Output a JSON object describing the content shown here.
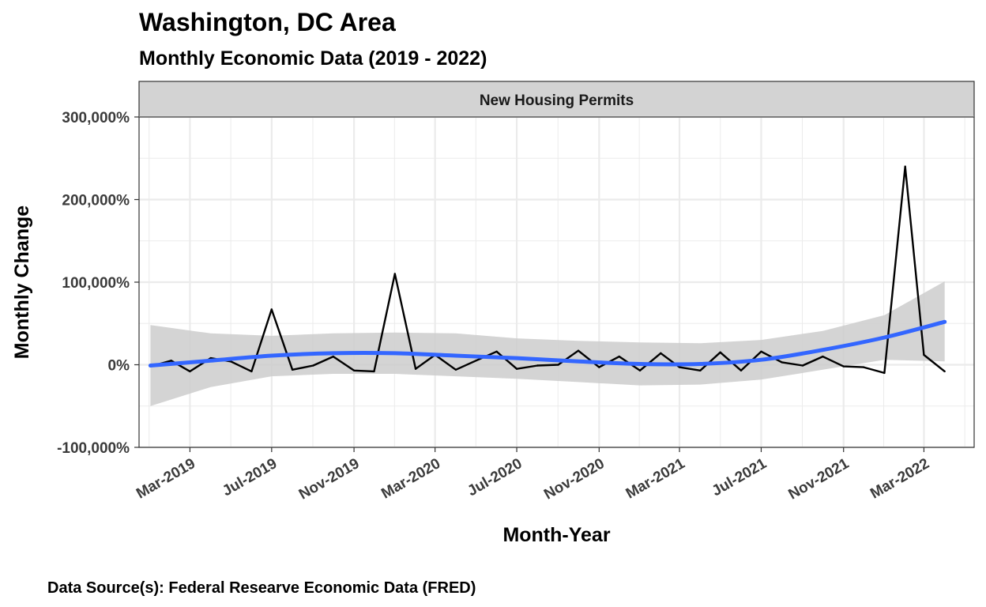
{
  "header": {
    "title": "Washington, DC Area",
    "subtitle": "Monthly Economic Data (2019 - 2022)"
  },
  "caption": "Data Source(s): Federal Researve Economic Data (FRED)",
  "colors": {
    "line": "#000000",
    "smooth": "#3366FF",
    "ribbon": "#cccccc",
    "strip": "#d3d3d3",
    "grid": "#ebebeb"
  },
  "chart_data": {
    "type": "line",
    "facet": "New Housing Permits",
    "xlabel": "Month-Year",
    "ylabel": "Monthly Change",
    "grid": true,
    "x_range": [
      "2018-12-15",
      "2022-05-15"
    ],
    "ylim": [
      -100000,
      300000
    ],
    "y_ticks": [
      {
        "value": -100000,
        "label": "-100,000%"
      },
      {
        "value": 0,
        "label": "0%"
      },
      {
        "value": 100000,
        "label": "100,000%"
      },
      {
        "value": 200000,
        "label": "200,000%"
      },
      {
        "value": 300000,
        "label": "300,000%"
      }
    ],
    "x_ticks": [
      {
        "date": "2019-03-01",
        "label": "Mar-2019"
      },
      {
        "date": "2019-07-01",
        "label": "Jul-2019"
      },
      {
        "date": "2019-11-01",
        "label": "Nov-2019"
      },
      {
        "date": "2020-03-01",
        "label": "Mar-2020"
      },
      {
        "date": "2020-07-01",
        "label": "Jul-2020"
      },
      {
        "date": "2020-11-01",
        "label": "Nov-2020"
      },
      {
        "date": "2021-03-01",
        "label": "Mar-2021"
      },
      {
        "date": "2021-07-01",
        "label": "Jul-2021"
      },
      {
        "date": "2021-11-01",
        "label": "Nov-2021"
      },
      {
        "date": "2022-03-01",
        "label": "Mar-2022"
      }
    ],
    "series": [
      {
        "values": [
          {
            "x": "2019-01-01",
            "y": -2000
          },
          {
            "x": "2019-02-01",
            "y": 5000
          },
          {
            "x": "2019-03-01",
            "y": -8000
          },
          {
            "x": "2019-04-01",
            "y": 8000
          },
          {
            "x": "2019-05-01",
            "y": 4000
          },
          {
            "x": "2019-06-01",
            "y": -8000
          },
          {
            "x": "2019-07-01",
            "y": 67000
          },
          {
            "x": "2019-08-01",
            "y": -6000
          },
          {
            "x": "2019-09-01",
            "y": -1000
          },
          {
            "x": "2019-10-01",
            "y": 10000
          },
          {
            "x": "2019-11-01",
            "y": -7000
          },
          {
            "x": "2019-12-01",
            "y": -8000
          },
          {
            "x": "2020-01-01",
            "y": 110000
          },
          {
            "x": "2020-02-01",
            "y": -5000
          },
          {
            "x": "2020-03-01",
            "y": 12000
          },
          {
            "x": "2020-04-01",
            "y": -6000
          },
          {
            "x": "2020-05-01",
            "y": 5000
          },
          {
            "x": "2020-06-01",
            "y": 16000
          },
          {
            "x": "2020-07-01",
            "y": -5000
          },
          {
            "x": "2020-08-01",
            "y": -1000
          },
          {
            "x": "2020-09-01",
            "y": 0
          },
          {
            "x": "2020-10-01",
            "y": 17000
          },
          {
            "x": "2020-11-01",
            "y": -3000
          },
          {
            "x": "2020-12-01",
            "y": 10000
          },
          {
            "x": "2021-01-01",
            "y": -7000
          },
          {
            "x": "2021-02-01",
            "y": 14000
          },
          {
            "x": "2021-03-01",
            "y": -3000
          },
          {
            "x": "2021-04-01",
            "y": -7000
          },
          {
            "x": "2021-05-01",
            "y": 15000
          },
          {
            "x": "2021-06-01",
            "y": -7000
          },
          {
            "x": "2021-07-01",
            "y": 16000
          },
          {
            "x": "2021-08-01",
            "y": 3000
          },
          {
            "x": "2021-09-01",
            "y": -1000
          },
          {
            "x": "2021-10-01",
            "y": 10000
          },
          {
            "x": "2021-11-01",
            "y": -2000
          },
          {
            "x": "2021-12-01",
            "y": -3000
          },
          {
            "x": "2022-01-01",
            "y": -10000
          },
          {
            "x": "2022-02-01",
            "y": 240000
          },
          {
            "x": "2022-03-01",
            "y": 12000
          },
          {
            "x": "2022-04-01",
            "y": -8000
          }
        ]
      }
    ],
    "smooth": {
      "values": [
        {
          "x": "2019-01-01",
          "y": -1000,
          "lower": -50000,
          "upper": 48000
        },
        {
          "x": "2019-04-01",
          "y": 5000,
          "lower": -27000,
          "upper": 38000
        },
        {
          "x": "2019-07-01",
          "y": 11000,
          "lower": -14000,
          "upper": 35000
        },
        {
          "x": "2019-10-01",
          "y": 14000,
          "lower": -11000,
          "upper": 38000
        },
        {
          "x": "2020-01-01",
          "y": 14000,
          "lower": -11000,
          "upper": 39000
        },
        {
          "x": "2020-04-01",
          "y": 11000,
          "lower": -14000,
          "upper": 38000
        },
        {
          "x": "2020-07-01",
          "y": 8000,
          "lower": -17000,
          "upper": 32000
        },
        {
          "x": "2020-10-01",
          "y": 4000,
          "lower": -21000,
          "upper": 29000
        },
        {
          "x": "2021-01-01",
          "y": 1000,
          "lower": -25000,
          "upper": 27000
        },
        {
          "x": "2021-04-01",
          "y": 1000,
          "lower": -24000,
          "upper": 26000
        },
        {
          "x": "2021-07-01",
          "y": 6000,
          "lower": -18000,
          "upper": 30000
        },
        {
          "x": "2021-10-01",
          "y": 18000,
          "lower": -6000,
          "upper": 41000
        },
        {
          "x": "2022-01-01",
          "y": 33000,
          "lower": 6000,
          "upper": 60000
        },
        {
          "x": "2022-04-01",
          "y": 52000,
          "lower": 4000,
          "upper": 101000
        }
      ]
    }
  }
}
